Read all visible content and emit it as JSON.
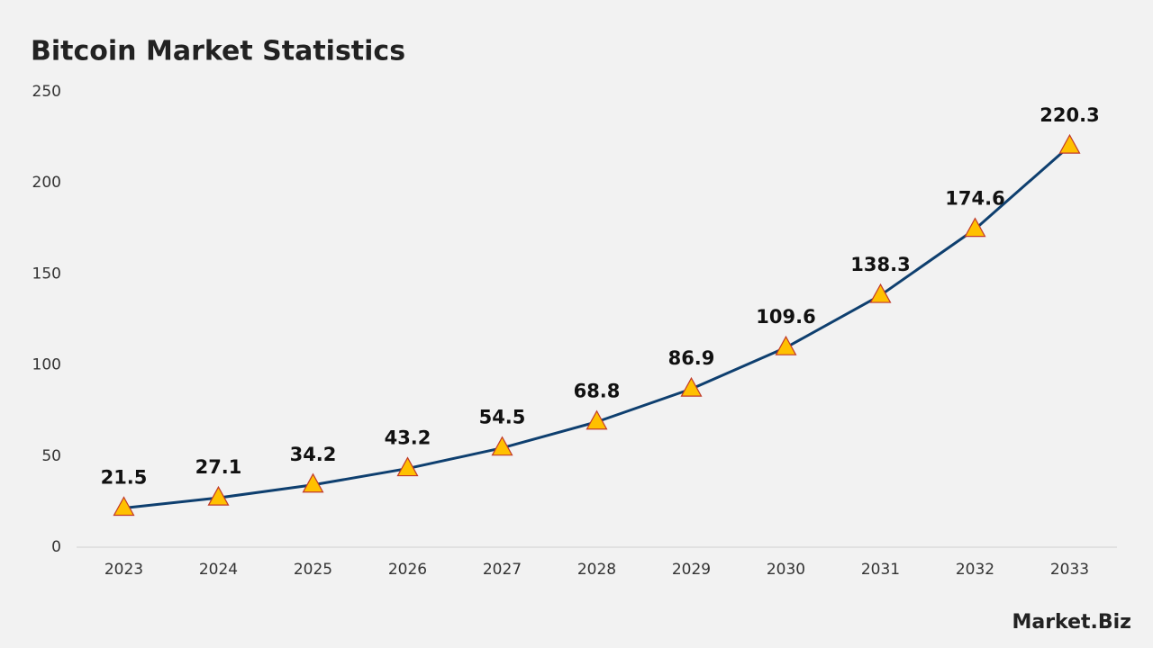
{
  "chart_data": {
    "type": "line",
    "title": "Bitcoin Market Statistics",
    "categories": [
      "2023",
      "2024",
      "2025",
      "2026",
      "2027",
      "2028",
      "2029",
      "2030",
      "2031",
      "2032",
      "2033"
    ],
    "values": [
      21.5,
      27.1,
      34.2,
      43.2,
      54.5,
      68.8,
      86.9,
      109.6,
      138.3,
      174.6,
      220.3
    ],
    "color": "#0e3f6f",
    "marker": "triangle",
    "marker_color": "#ffc000",
    "marker_edge_color": "#c0392b",
    "ylim": [
      0,
      250
    ],
    "yticks": [
      0,
      50,
      100,
      150,
      200,
      250
    ],
    "grid": false,
    "logo": "Market.Biz"
  }
}
